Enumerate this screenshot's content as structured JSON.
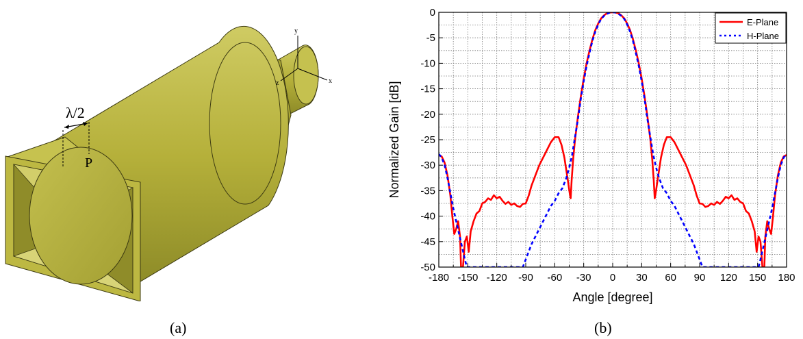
{
  "captions": {
    "a": "(a)",
    "b": "(b)"
  },
  "diagram": {
    "dimension_label": "λ/2",
    "point_label": "P",
    "axis_labels": {
      "x": "x",
      "y": "y",
      "z": "z"
    },
    "body_color": "#b5b03a",
    "body_shadow_color": "#8c8a27",
    "body_light_color": "#cfcb63"
  },
  "chart_data": {
    "type": "line",
    "xlabel": "Angle [degree]",
    "ylabel": "Normalized Gain [dB]",
    "xlim": [
      -180,
      180
    ],
    "ylim": [
      -50,
      0
    ],
    "x_ticks": [
      -180,
      -150,
      -120,
      -90,
      -60,
      -30,
      0,
      30,
      60,
      90,
      120,
      150,
      180
    ],
    "y_ticks": [
      0,
      -5,
      -10,
      -15,
      -20,
      -25,
      -30,
      -35,
      -40,
      -45,
      -50
    ],
    "grid": true,
    "legend_position": "top-right",
    "series": [
      {
        "name": "E-Plane",
        "color": "#ff0000",
        "style": "solid",
        "points": [
          [
            -180,
            -28
          ],
          [
            -177,
            -28.3
          ],
          [
            -174,
            -29.5
          ],
          [
            -171,
            -32
          ],
          [
            -168,
            -36
          ],
          [
            -166,
            -40
          ],
          [
            -164,
            -43.5
          ],
          [
            -162,
            -42.5
          ],
          [
            -160,
            -41
          ],
          [
            -158,
            -44
          ],
          [
            -157,
            -50
          ],
          [
            -155,
            -50
          ],
          [
            -153,
            -45
          ],
          [
            -151,
            -44
          ],
          [
            -149,
            -47
          ],
          [
            -147,
            -43
          ],
          [
            -144,
            -41
          ],
          [
            -141,
            -39.5
          ],
          [
            -138,
            -39
          ],
          [
            -135,
            -37.5
          ],
          [
            -132,
            -37.2
          ],
          [
            -129,
            -36.5
          ],
          [
            -126,
            -36.8
          ],
          [
            -123,
            -35.9
          ],
          [
            -120,
            -36.5
          ],
          [
            -117,
            -36.2
          ],
          [
            -114,
            -37
          ],
          [
            -111,
            -37.6
          ],
          [
            -108,
            -37.2
          ],
          [
            -105,
            -37.8
          ],
          [
            -102,
            -37.5
          ],
          [
            -99,
            -38
          ],
          [
            -96,
            -38.2
          ],
          [
            -93,
            -37.6
          ],
          [
            -90,
            -37.5
          ],
          [
            -87,
            -36
          ],
          [
            -84,
            -34
          ],
          [
            -80,
            -32
          ],
          [
            -76,
            -30
          ],
          [
            -72,
            -28.5
          ],
          [
            -68,
            -27
          ],
          [
            -64,
            -25.5
          ],
          [
            -60,
            -24.5
          ],
          [
            -56,
            -24.5
          ],
          [
            -53,
            -26
          ],
          [
            -50,
            -28.5
          ],
          [
            -48,
            -31
          ],
          [
            -46,
            -33.5
          ],
          [
            -44.5,
            -35.5
          ],
          [
            -43.5,
            -36.5
          ],
          [
            -42.5,
            -33
          ],
          [
            -41,
            -29
          ],
          [
            -39,
            -25
          ],
          [
            -36,
            -20.5
          ],
          [
            -33,
            -16.5
          ],
          [
            -30,
            -13
          ],
          [
            -27,
            -10
          ],
          [
            -24,
            -7.5
          ],
          [
            -21,
            -5.3
          ],
          [
            -18,
            -3.5
          ],
          [
            -15,
            -2.2
          ],
          [
            -12,
            -1.2
          ],
          [
            -9,
            -0.6
          ],
          [
            -6,
            -0.2
          ],
          [
            -3,
            -0.05
          ],
          [
            0,
            0
          ],
          [
            3,
            -0.05
          ],
          [
            6,
            -0.2
          ],
          [
            9,
            -0.6
          ],
          [
            12,
            -1.2
          ],
          [
            15,
            -2.2
          ],
          [
            18,
            -3.5
          ],
          [
            21,
            -5.3
          ],
          [
            24,
            -7.5
          ],
          [
            27,
            -10
          ],
          [
            30,
            -13
          ],
          [
            33,
            -16.5
          ],
          [
            36,
            -20.5
          ],
          [
            39,
            -25
          ],
          [
            41,
            -29
          ],
          [
            42.5,
            -33
          ],
          [
            43.5,
            -36.5
          ],
          [
            44.5,
            -35.5
          ],
          [
            46,
            -33.5
          ],
          [
            48,
            -31
          ],
          [
            50,
            -28.5
          ],
          [
            53,
            -26
          ],
          [
            56,
            -24.5
          ],
          [
            60,
            -24.5
          ],
          [
            64,
            -25.5
          ],
          [
            68,
            -27
          ],
          [
            72,
            -28.5
          ],
          [
            76,
            -30
          ],
          [
            80,
            -32
          ],
          [
            84,
            -34
          ],
          [
            87,
            -36
          ],
          [
            90,
            -37.5
          ],
          [
            93,
            -37.6
          ],
          [
            96,
            -38.2
          ],
          [
            99,
            -38
          ],
          [
            102,
            -37.5
          ],
          [
            105,
            -37.8
          ],
          [
            108,
            -37.2
          ],
          [
            111,
            -37.6
          ],
          [
            114,
            -37
          ],
          [
            117,
            -36.2
          ],
          [
            120,
            -36.5
          ],
          [
            123,
            -35.9
          ],
          [
            126,
            -36.8
          ],
          [
            129,
            -36.5
          ],
          [
            132,
            -37.2
          ],
          [
            135,
            -37.5
          ],
          [
            138,
            -39
          ],
          [
            141,
            -39.5
          ],
          [
            144,
            -41
          ],
          [
            147,
            -43
          ],
          [
            149,
            -47
          ],
          [
            151,
            -44
          ],
          [
            153,
            -45
          ],
          [
            155,
            -50
          ],
          [
            157,
            -50
          ],
          [
            158,
            -44
          ],
          [
            160,
            -41
          ],
          [
            162,
            -42.5
          ],
          [
            164,
            -43.5
          ],
          [
            166,
            -40
          ],
          [
            168,
            -36
          ],
          [
            171,
            -32
          ],
          [
            174,
            -29.5
          ],
          [
            177,
            -28.3
          ],
          [
            180,
            -28
          ]
        ]
      },
      {
        "name": "H-Plane",
        "color": "#0000ff",
        "style": "dotted",
        "points": [
          [
            -180,
            -27.8
          ],
          [
            -177,
            -28.5
          ],
          [
            -174,
            -30
          ],
          [
            -171,
            -32.5
          ],
          [
            -168,
            -35.5
          ],
          [
            -165,
            -38.5
          ],
          [
            -162,
            -41
          ],
          [
            -159,
            -43.5
          ],
          [
            -156,
            -46
          ],
          [
            -153,
            -48.5
          ],
          [
            -151,
            -50
          ],
          [
            -93,
            -50
          ],
          [
            -90,
            -48.5
          ],
          [
            -87,
            -47
          ],
          [
            -84,
            -45.5
          ],
          [
            -80,
            -44
          ],
          [
            -76,
            -42.5
          ],
          [
            -72,
            -41
          ],
          [
            -68,
            -39.5
          ],
          [
            -64,
            -38
          ],
          [
            -60,
            -37
          ],
          [
            -56,
            -35.5
          ],
          [
            -52,
            -34.5
          ],
          [
            -48,
            -32.5
          ],
          [
            -45,
            -30.5
          ],
          [
            -42,
            -28
          ],
          [
            -39,
            -24.5
          ],
          [
            -36,
            -21
          ],
          [
            -33,
            -17
          ],
          [
            -30,
            -13.5
          ],
          [
            -27,
            -10.5
          ],
          [
            -24,
            -8
          ],
          [
            -21,
            -5.6
          ],
          [
            -18,
            -3.8
          ],
          [
            -15,
            -2.4
          ],
          [
            -12,
            -1.3
          ],
          [
            -9,
            -0.7
          ],
          [
            -6,
            -0.3
          ],
          [
            -3,
            -0.05
          ],
          [
            0,
            0
          ],
          [
            3,
            -0.05
          ],
          [
            6,
            -0.3
          ],
          [
            9,
            -0.7
          ],
          [
            12,
            -1.3
          ],
          [
            15,
            -2.4
          ],
          [
            18,
            -3.8
          ],
          [
            21,
            -5.6
          ],
          [
            24,
            -8
          ],
          [
            27,
            -10.5
          ],
          [
            30,
            -13.5
          ],
          [
            33,
            -17
          ],
          [
            36,
            -21
          ],
          [
            39,
            -24.5
          ],
          [
            42,
            -28
          ],
          [
            45,
            -30.5
          ],
          [
            48,
            -32.5
          ],
          [
            52,
            -34.5
          ],
          [
            56,
            -35.5
          ],
          [
            60,
            -37
          ],
          [
            64,
            -38
          ],
          [
            68,
            -39.5
          ],
          [
            72,
            -41
          ],
          [
            76,
            -42.5
          ],
          [
            80,
            -44
          ],
          [
            84,
            -45.5
          ],
          [
            87,
            -47
          ],
          [
            90,
            -48.5
          ],
          [
            93,
            -50
          ],
          [
            151,
            -50
          ],
          [
            153,
            -48.5
          ],
          [
            156,
            -46
          ],
          [
            159,
            -43.5
          ],
          [
            162,
            -41
          ],
          [
            165,
            -38.5
          ],
          [
            168,
            -35.5
          ],
          [
            171,
            -32.5
          ],
          [
            174,
            -30
          ],
          [
            177,
            -28.5
          ],
          [
            180,
            -27.8
          ]
        ]
      }
    ]
  }
}
